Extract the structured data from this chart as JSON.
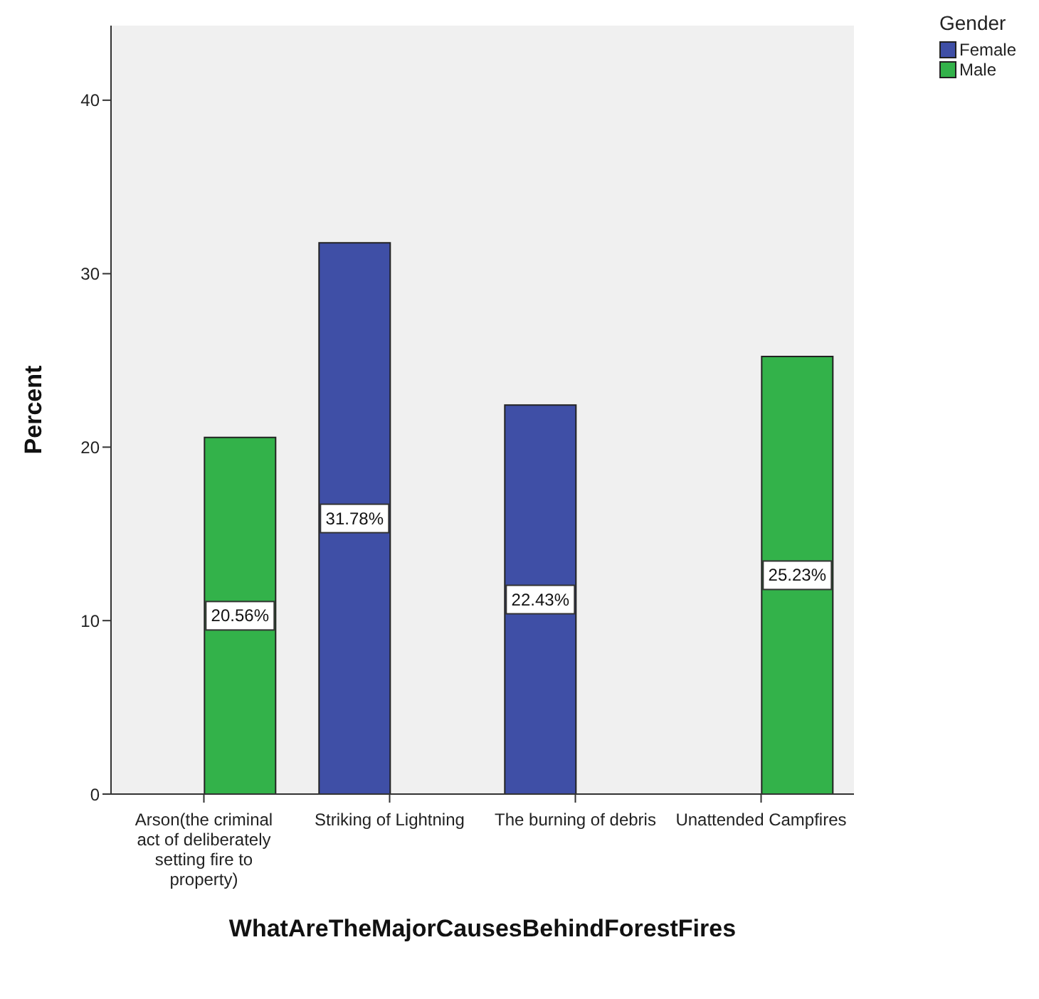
{
  "chart_data": {
    "type": "bar",
    "xlabel": "WhatAreTheMajorCausesBehindForestFires",
    "ylabel": "Percent",
    "legend_title": "Gender",
    "categories": [
      "Arson(the criminal act of deliberately setting fire to property)",
      "Striking of Lightning",
      "The burning of debris",
      "Unattended Campfires"
    ],
    "series": [
      {
        "name": "Female",
        "color": "#3f4fa6",
        "values": [
          null,
          31.78,
          22.43,
          null
        ],
        "value_labels": [
          null,
          "31.78%",
          "22.43%",
          null
        ]
      },
      {
        "name": "Male",
        "color": "#33b24a",
        "values": [
          20.56,
          null,
          null,
          25.23
        ],
        "value_labels": [
          "20.56%",
          null,
          null,
          "25.23%"
        ]
      }
    ],
    "ylim": [
      0,
      44.3
    ],
    "yticks": [
      0,
      10,
      20,
      30,
      40
    ],
    "grid": false,
    "legend": "top right"
  }
}
